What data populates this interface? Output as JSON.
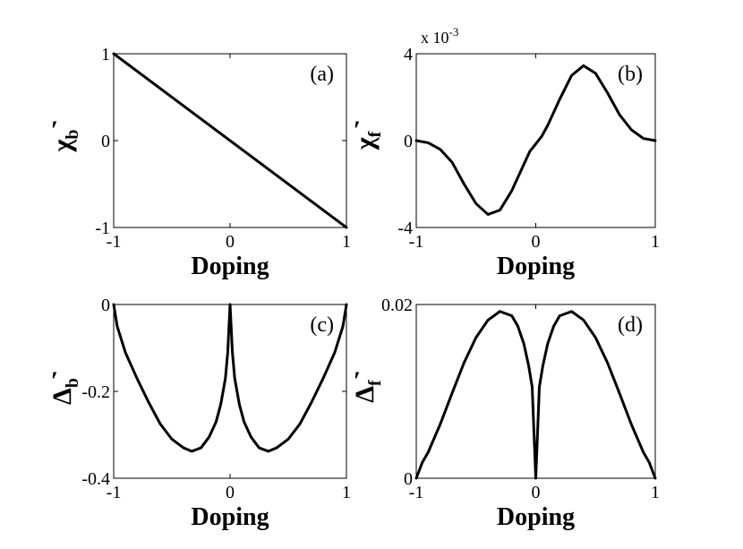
{
  "chart_data": [
    {
      "type": "line",
      "panel_label": "(a)",
      "xlabel": "Doping",
      "ylabel": {
        "symbol": "χ",
        "subscript": "b",
        "prime": "′"
      },
      "xlim": [
        -1,
        1
      ],
      "ylim": [
        -1,
        1
      ],
      "xticks": [
        "-1",
        "0",
        "1"
      ],
      "yticks": [
        "1",
        "0",
        "-1"
      ],
      "ytick_values": [
        1,
        0,
        -1
      ],
      "exponent_label": "",
      "series": [
        {
          "x": [
            -1,
            1
          ],
          "y": [
            1,
            -1
          ]
        }
      ]
    },
    {
      "type": "line",
      "panel_label": "(b)",
      "xlabel": "Doping",
      "ylabel": {
        "symbol": "χ",
        "subscript": "f",
        "prime": "′"
      },
      "xlim": [
        -1,
        1
      ],
      "ylim": [
        -4,
        4
      ],
      "xticks": [
        "-1",
        "0",
        "1"
      ],
      "yticks": [
        "4",
        "0",
        "-4"
      ],
      "ytick_values": [
        4,
        0,
        -4
      ],
      "exponent_label": "x 10",
      "exponent_power": "-3",
      "series": [
        {
          "x": [
            -1,
            -0.9,
            -0.8,
            -0.7,
            -0.6,
            -0.5,
            -0.4,
            -0.3,
            -0.2,
            -0.1,
            -0.05,
            0,
            0.05,
            0.1,
            0.2,
            0.3,
            0.4,
            0.5,
            0.6,
            0.7,
            0.8,
            0.9,
            1
          ],
          "y": [
            0,
            -0.1,
            -0.4,
            -1.0,
            -2.0,
            -2.9,
            -3.4,
            -3.2,
            -2.3,
            -1.1,
            -0.5,
            -0.15,
            0.2,
            0.7,
            1.9,
            3.0,
            3.45,
            3.1,
            2.2,
            1.2,
            0.5,
            0.1,
            0
          ]
        }
      ]
    },
    {
      "type": "line",
      "panel_label": "(c)",
      "xlabel": "Doping",
      "ylabel": {
        "symbol": "Δ",
        "subscript": "b",
        "prime": "′"
      },
      "xlim": [
        -1,
        1
      ],
      "ylim": [
        -0.4,
        0
      ],
      "xticks": [
        "-1",
        "0",
        "1"
      ],
      "yticks": [
        "0",
        "-0.2",
        "-0.4"
      ],
      "ytick_values": [
        0,
        -0.2,
        -0.4
      ],
      "exponent_label": "",
      "series": [
        {
          "x": [
            -1,
            -0.97,
            -0.9,
            -0.8,
            -0.7,
            -0.6,
            -0.5,
            -0.4,
            -0.33,
            -0.25,
            -0.18,
            -0.12,
            -0.08,
            -0.04,
            -0.02,
            0,
            0.02,
            0.04,
            0.08,
            0.12,
            0.18,
            0.25,
            0.33,
            0.4,
            0.5,
            0.6,
            0.7,
            0.8,
            0.9,
            0.97,
            1
          ],
          "y": [
            0,
            -0.05,
            -0.11,
            -0.17,
            -0.225,
            -0.275,
            -0.31,
            -0.33,
            -0.338,
            -0.33,
            -0.305,
            -0.27,
            -0.23,
            -0.17,
            -0.11,
            0,
            -0.11,
            -0.17,
            -0.23,
            -0.27,
            -0.305,
            -0.33,
            -0.338,
            -0.33,
            -0.31,
            -0.275,
            -0.225,
            -0.17,
            -0.11,
            -0.05,
            0
          ]
        }
      ]
    },
    {
      "type": "line",
      "panel_label": "(d)",
      "xlabel": "Doping",
      "ylabel": {
        "symbol": "Δ",
        "subscript": "f",
        "prime": "′"
      },
      "xlim": [
        -1,
        1
      ],
      "ylim": [
        0,
        0.02
      ],
      "xticks": [
        "-1",
        "0",
        "1"
      ],
      "yticks": [
        "0.02",
        "0"
      ],
      "ytick_values": [
        0.02,
        0
      ],
      "exponent_label": "",
      "series": [
        {
          "x": [
            -1,
            -0.95,
            -0.9,
            -0.8,
            -0.7,
            -0.6,
            -0.5,
            -0.4,
            -0.3,
            -0.2,
            -0.15,
            -0.1,
            -0.06,
            -0.03,
            0,
            0.03,
            0.06,
            0.1,
            0.15,
            0.2,
            0.3,
            0.4,
            0.5,
            0.6,
            0.7,
            0.8,
            0.9,
            0.95,
            1
          ],
          "y": [
            0,
            0.0018,
            0.003,
            0.0062,
            0.0098,
            0.0133,
            0.0162,
            0.0182,
            0.0192,
            0.0187,
            0.0175,
            0.0155,
            0.013,
            0.0105,
            0,
            0.0105,
            0.013,
            0.0155,
            0.0175,
            0.0187,
            0.0192,
            0.0182,
            0.0162,
            0.0133,
            0.0098,
            0.0062,
            0.003,
            0.0018,
            0
          ]
        }
      ]
    }
  ]
}
